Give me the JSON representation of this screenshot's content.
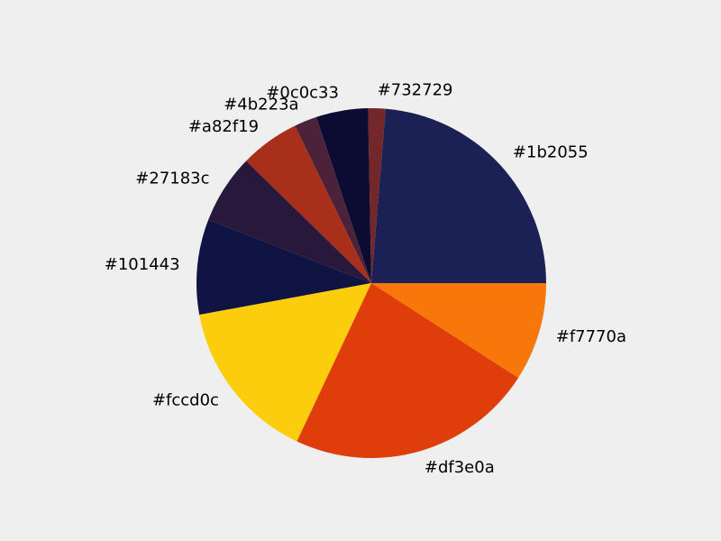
{
  "chart_data": {
    "type": "pie",
    "title": "",
    "slices": [
      {
        "label": "#1b2055",
        "value": 23.7,
        "color": "#1b2055"
      },
      {
        "label": "#732729",
        "value": 1.6,
        "color": "#732729"
      },
      {
        "label": "#0c0c33",
        "value": 4.8,
        "color": "#0c0c33"
      },
      {
        "label": "#4b223a",
        "value": 2.1,
        "color": "#4b223a"
      },
      {
        "label": "#a82f19",
        "value": 5.5,
        "color": "#a82f19"
      },
      {
        "label": "#27183c",
        "value": 6.4,
        "color": "#27183c"
      },
      {
        "label": "#101443",
        "value": 8.8,
        "color": "#101443"
      },
      {
        "label": "#fccd0c",
        "value": 15.1,
        "color": "#fccd0c"
      },
      {
        "label": "#df3e0a",
        "value": 22.9,
        "color": "#df3e0a"
      },
      {
        "label": "#f7770a",
        "value": 9.1,
        "color": "#f7770a"
      }
    ],
    "start_angle_deg": 0,
    "direction": "counterclockwise",
    "legend": "none",
    "labels_outside": true
  }
}
